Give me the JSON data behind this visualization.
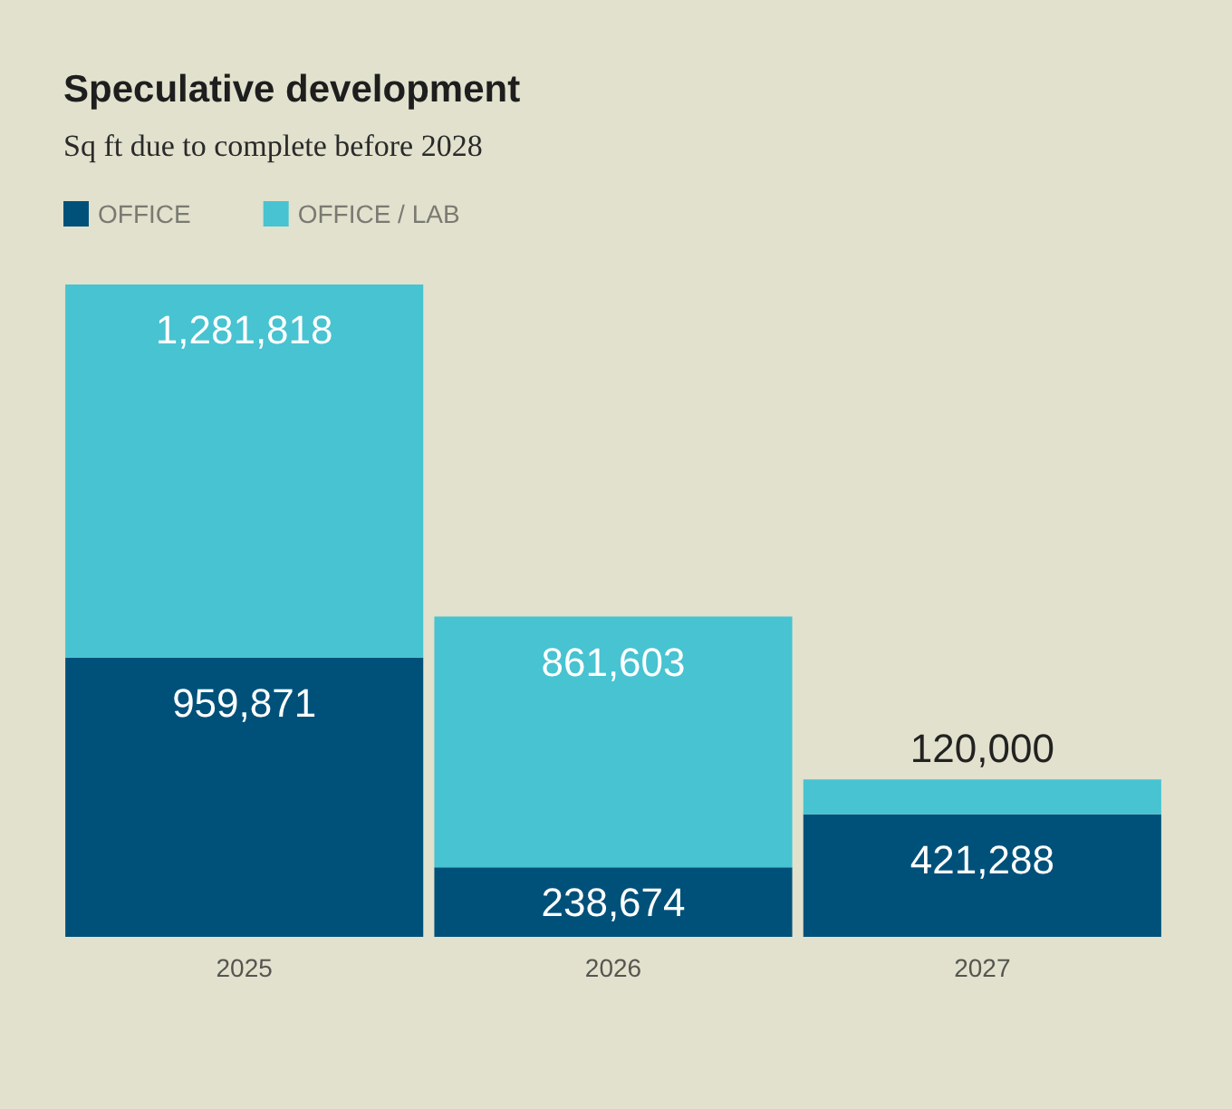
{
  "chart_data": {
    "type": "bar",
    "title": "Speculative development",
    "subtitle": "Sq ft due to complete before 2028",
    "categories": [
      "2025",
      "2026",
      "2027"
    ],
    "stacked": true,
    "legend": "top left",
    "grid": false,
    "series": [
      {
        "name": "OFFICE",
        "color": "#00517a",
        "values": [
          959871,
          238674,
          421288
        ],
        "value_labels": [
          "959,871",
          "238,674",
          "421,288"
        ]
      },
      {
        "name": "OFFICE / LAB",
        "color": "#47c3d1",
        "values": [
          1281818,
          861603,
          120000
        ],
        "value_labels": [
          "1,281,818",
          "861,603",
          "120,000"
        ]
      }
    ]
  }
}
